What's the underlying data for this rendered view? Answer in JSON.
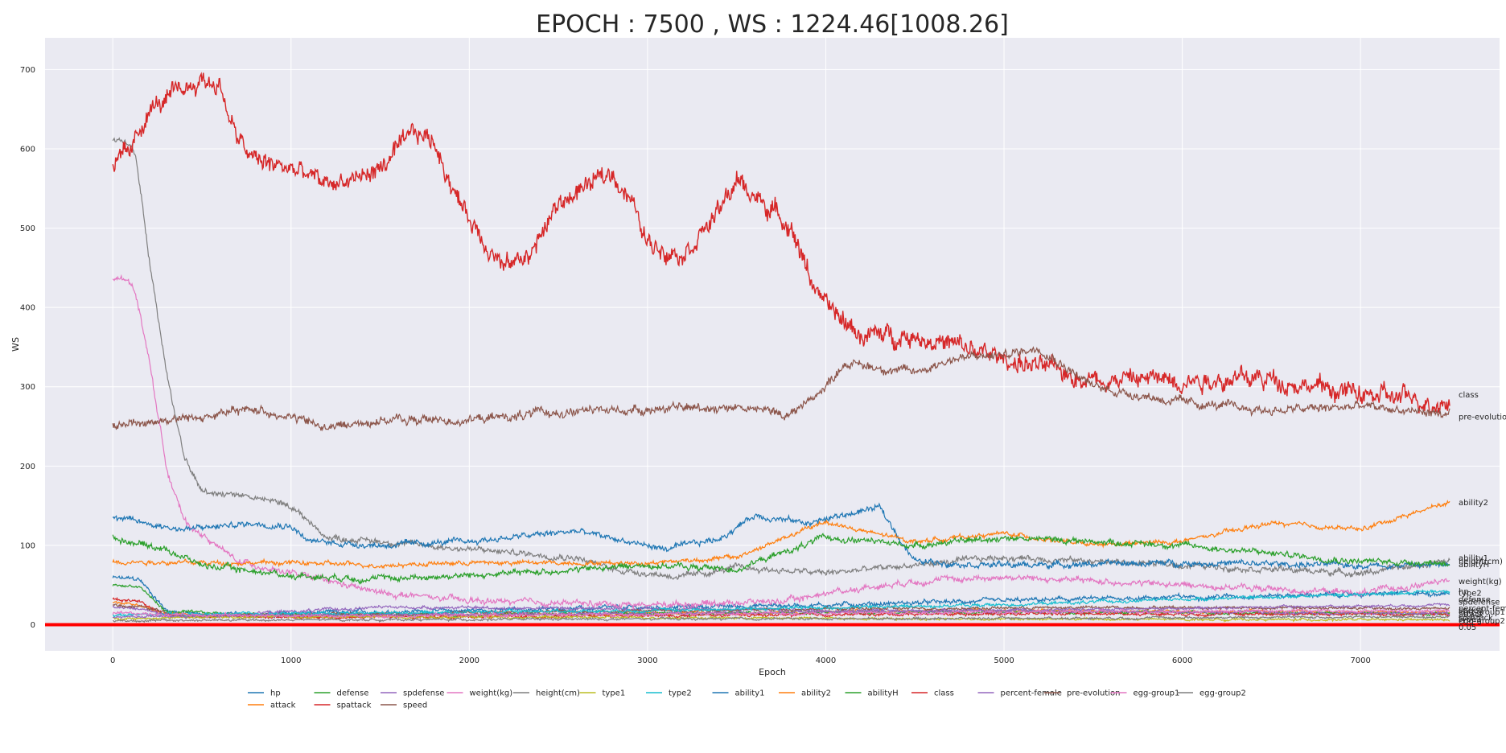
{
  "chart_data": {
    "type": "line",
    "title": "EPOCH : 7500 , WS : 1224.46[1008.26]",
    "xlabel": "Epoch",
    "ylabel": "WS",
    "xlim": [
      -380,
      7780
    ],
    "ylim": [
      -33,
      740
    ],
    "xticks": [
      0,
      1000,
      2000,
      3000,
      4000,
      5000,
      6000,
      7000
    ],
    "yticks": [
      0,
      100,
      200,
      300,
      400,
      500,
      600,
      700
    ],
    "grid": true,
    "legend_position": "bottom",
    "hline": {
      "y": 0,
      "color": "#ff0000"
    },
    "series": [
      {
        "name": "hp",
        "color": "#1f77b4",
        "noise": 3,
        "points": [
          [
            0,
            59
          ],
          [
            150,
            57
          ],
          [
            300,
            18
          ],
          [
            500,
            12
          ],
          [
            2000,
            18
          ],
          [
            4000,
            25
          ],
          [
            6000,
            35
          ],
          [
            7500,
            40
          ]
        ]
      },
      {
        "name": "attack",
        "color": "#ff7f0e",
        "noise": 2,
        "points": [
          [
            0,
            28
          ],
          [
            150,
            26
          ],
          [
            300,
            13
          ],
          [
            1000,
            10
          ],
          [
            3000,
            14
          ],
          [
            5000,
            18
          ],
          [
            7500,
            15
          ]
        ]
      },
      {
        "name": "defense",
        "color": "#2ca02c",
        "noise": 2,
        "points": [
          [
            0,
            50
          ],
          [
            150,
            48
          ],
          [
            300,
            16
          ],
          [
            1000,
            12
          ],
          [
            3000,
            14
          ],
          [
            5000,
            16
          ],
          [
            7500,
            14
          ]
        ]
      },
      {
        "name": "spattack",
        "color": "#d62728",
        "noise": 2,
        "points": [
          [
            0,
            32
          ],
          [
            150,
            30
          ],
          [
            300,
            12
          ],
          [
            1000,
            9
          ],
          [
            3000,
            11
          ],
          [
            5000,
            14
          ],
          [
            7500,
            13
          ]
        ]
      },
      {
        "name": "spdefense",
        "color": "#9467bd",
        "noise": 2,
        "points": [
          [
            0,
            22
          ],
          [
            150,
            20
          ],
          [
            400,
            10
          ],
          [
            1500,
            22
          ],
          [
            3000,
            20
          ],
          [
            5000,
            17
          ],
          [
            7500,
            14
          ]
        ]
      },
      {
        "name": "speed",
        "color": "#8c564b",
        "noise": 2,
        "points": [
          [
            0,
            25
          ],
          [
            150,
            23
          ],
          [
            400,
            11
          ],
          [
            2000,
            15
          ],
          [
            4000,
            20
          ],
          [
            6000,
            22
          ],
          [
            7500,
            20
          ]
        ]
      },
      {
        "name": "weight(kg)",
        "color": "#e377c2",
        "noise": 4,
        "points": [
          [
            0,
            437
          ],
          [
            110,
            432
          ],
          [
            130,
            415
          ],
          [
            200,
            340
          ],
          [
            300,
            200
          ],
          [
            400,
            130
          ],
          [
            700,
            80
          ],
          [
            1000,
            65
          ],
          [
            1500,
            40
          ],
          [
            2000,
            30
          ],
          [
            3000,
            25
          ],
          [
            3800,
            30
          ],
          [
            4000,
            40
          ],
          [
            4500,
            55
          ],
          [
            5000,
            60
          ],
          [
            6000,
            50
          ],
          [
            7000,
            40
          ],
          [
            7500,
            55
          ]
        ]
      },
      {
        "name": "height(cm)",
        "color": "#7f7f7f",
        "noise": 4,
        "points": [
          [
            0,
            613
          ],
          [
            110,
            605
          ],
          [
            130,
            590
          ],
          [
            200,
            470
          ],
          [
            300,
            320
          ],
          [
            400,
            210
          ],
          [
            500,
            168
          ],
          [
            700,
            165
          ],
          [
            900,
            155
          ],
          [
            1000,
            150
          ],
          [
            1200,
            110
          ],
          [
            1500,
            105
          ],
          [
            2000,
            95
          ],
          [
            2600,
            85
          ],
          [
            2800,
            70
          ],
          [
            3200,
            60
          ],
          [
            3500,
            72
          ],
          [
            4000,
            65
          ],
          [
            5000,
            85
          ],
          [
            6000,
            75
          ],
          [
            7000,
            65
          ],
          [
            7500,
            80
          ]
        ]
      },
      {
        "name": "type1",
        "color": "#bcbd22",
        "noise": 1.5,
        "points": [
          [
            0,
            8
          ],
          [
            1000,
            10
          ],
          [
            3000,
            9
          ],
          [
            5000,
            7
          ],
          [
            7500,
            6
          ]
        ]
      },
      {
        "name": "type2",
        "color": "#17becf",
        "noise": 2,
        "points": [
          [
            0,
            12
          ],
          [
            1000,
            14
          ],
          [
            3000,
            18
          ],
          [
            5000,
            25
          ],
          [
            6000,
            32
          ],
          [
            7000,
            38
          ],
          [
            7500,
            43
          ]
        ]
      },
      {
        "name": "ability1",
        "color": "#1f77b4",
        "noise": 4,
        "points": [
          [
            0,
            135
          ],
          [
            400,
            120
          ],
          [
            800,
            128
          ],
          [
            1000,
            125
          ],
          [
            1100,
            105
          ],
          [
            1500,
            100
          ],
          [
            2000,
            105
          ],
          [
            2600,
            118
          ],
          [
            3100,
            95
          ],
          [
            3400,
            108
          ],
          [
            3600,
            138
          ],
          [
            3900,
            128
          ],
          [
            4300,
            148
          ],
          [
            4500,
            80
          ],
          [
            5000,
            75
          ],
          [
            6000,
            78
          ],
          [
            7000,
            75
          ],
          [
            7500,
            75
          ]
        ]
      },
      {
        "name": "ability2",
        "color": "#ff7f0e",
        "noise": 3,
        "points": [
          [
            0,
            80
          ],
          [
            500,
            78
          ],
          [
            1000,
            78
          ],
          [
            1500,
            75
          ],
          [
            2000,
            78
          ],
          [
            3000,
            78
          ],
          [
            3500,
            85
          ],
          [
            4000,
            130
          ],
          [
            4200,
            118
          ],
          [
            4500,
            105
          ],
          [
            5000,
            115
          ],
          [
            5500,
            100
          ],
          [
            6000,
            105
          ],
          [
            6500,
            128
          ],
          [
            7000,
            120
          ],
          [
            7500,
            155
          ]
        ]
      },
      {
        "name": "abilityH",
        "color": "#2ca02c",
        "noise": 4,
        "points": [
          [
            0,
            110
          ],
          [
            300,
            95
          ],
          [
            500,
            75
          ],
          [
            1000,
            62
          ],
          [
            1500,
            58
          ],
          [
            2000,
            62
          ],
          [
            2500,
            68
          ],
          [
            3000,
            75
          ],
          [
            3500,
            70
          ],
          [
            4000,
            110
          ],
          [
            4500,
            100
          ],
          [
            5000,
            110
          ],
          [
            5500,
            105
          ],
          [
            6000,
            100
          ],
          [
            6500,
            90
          ],
          [
            7000,
            80
          ],
          [
            7500,
            78
          ]
        ]
      },
      {
        "name": "class",
        "color": "#d62728",
        "noise": 13,
        "points": [
          [
            0,
            580
          ],
          [
            100,
            592
          ],
          [
            200,
            650
          ],
          [
            300,
            660
          ],
          [
            400,
            675
          ],
          [
            500,
            688
          ],
          [
            600,
            680
          ],
          [
            700,
            610
          ],
          [
            800,
            585
          ],
          [
            1000,
            575
          ],
          [
            1200,
            555
          ],
          [
            1400,
            565
          ],
          [
            1500,
            575
          ],
          [
            1700,
            620
          ],
          [
            1800,
            610
          ],
          [
            1950,
            530
          ],
          [
            2100,
            480
          ],
          [
            2200,
            450
          ],
          [
            2350,
            470
          ],
          [
            2500,
            530
          ],
          [
            2600,
            545
          ],
          [
            2800,
            570
          ],
          [
            2900,
            540
          ],
          [
            3000,
            480
          ],
          [
            3200,
            470
          ],
          [
            3400,
            520
          ],
          [
            3500,
            560
          ],
          [
            3600,
            540
          ],
          [
            3800,
            505
          ],
          [
            3900,
            445
          ],
          [
            4000,
            400
          ],
          [
            4200,
            365
          ],
          [
            4500,
            365
          ],
          [
            5000,
            335
          ],
          [
            5500,
            310
          ],
          [
            6000,
            310
          ],
          [
            6500,
            310
          ],
          [
            7000,
            290
          ],
          [
            7500,
            280
          ]
        ]
      },
      {
        "name": "percent-female",
        "color": "#9467bd",
        "noise": 1.5,
        "points": [
          [
            0,
            10
          ],
          [
            1000,
            12
          ],
          [
            3000,
            14
          ],
          [
            5000,
            18
          ],
          [
            7500,
            25
          ]
        ]
      },
      {
        "name": "pre-evolution",
        "color": "#8c564b",
        "noise": 6,
        "points": [
          [
            0,
            252
          ],
          [
            500,
            262
          ],
          [
            800,
            272
          ],
          [
            1000,
            262
          ],
          [
            1200,
            248
          ],
          [
            1500,
            258
          ],
          [
            2000,
            258
          ],
          [
            2500,
            268
          ],
          [
            3000,
            272
          ],
          [
            3500,
            275
          ],
          [
            3800,
            265
          ],
          [
            4000,
            300
          ],
          [
            4100,
            330
          ],
          [
            4500,
            318
          ],
          [
            4700,
            335
          ],
          [
            5000,
            340
          ],
          [
            5200,
            350
          ],
          [
            5500,
            300
          ],
          [
            6000,
            280
          ],
          [
            6500,
            270
          ],
          [
            7000,
            275
          ],
          [
            7500,
            265
          ]
        ]
      },
      {
        "name": "egg-group1",
        "color": "#e377c2",
        "noise": 2,
        "points": [
          [
            0,
            14
          ],
          [
            1000,
            11
          ],
          [
            3000,
            13
          ],
          [
            5000,
            16
          ],
          [
            7500,
            18
          ]
        ]
      },
      {
        "name": "egg-group2",
        "color": "#7f7f7f",
        "noise": 1.5,
        "points": [
          [
            0,
            5
          ],
          [
            1000,
            6
          ],
          [
            3000,
            7
          ],
          [
            5000,
            8
          ],
          [
            7500,
            10
          ]
        ]
      }
    ],
    "end_labels": [
      {
        "text": "class",
        "y": 290
      },
      {
        "text": "pre-evolution",
        "y": 262
      },
      {
        "text": "ability2",
        "y": 154
      },
      {
        "text": "ability1",
        "y": 84
      },
      {
        "text": "height(cm)",
        "y": 80
      },
      {
        "text": "abilityH",
        "y": 76
      },
      {
        "text": "weight(kg)",
        "y": 55
      },
      {
        "text": "hp",
        "y": 42
      },
      {
        "text": "type2",
        "y": 40
      },
      {
        "text": "defense",
        "y": 32
      },
      {
        "text": "spdefense",
        "y": 29
      },
      {
        "text": "percent-female",
        "y": 21
      },
      {
        "text": "speed",
        "y": 18
      },
      {
        "text": "egg-group1",
        "y": 16
      },
      {
        "text": "attack",
        "y": 13
      },
      {
        "text": "spattack",
        "y": 9
      },
      {
        "text": "type1",
        "y": 7
      },
      {
        "text": "egg-group2",
        "y": 5
      },
      {
        "text": "0.05",
        "y": -3
      }
    ]
  }
}
